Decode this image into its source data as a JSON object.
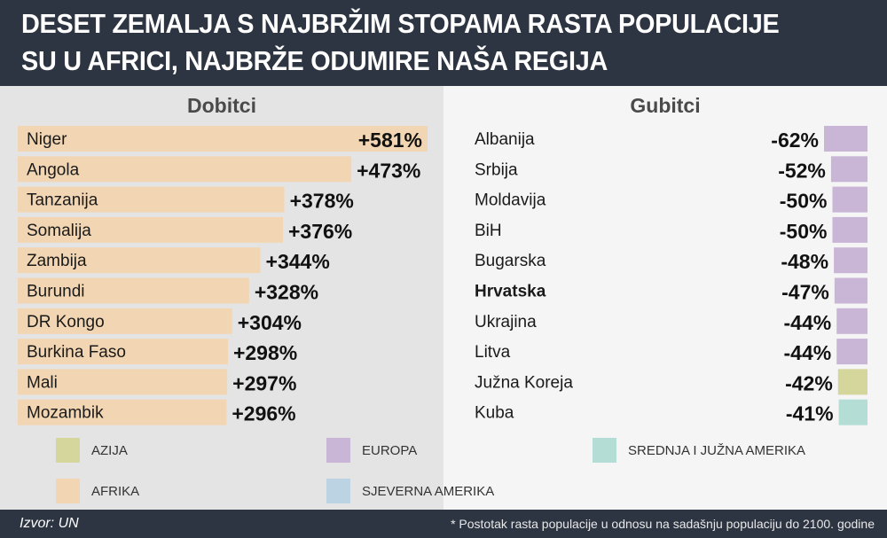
{
  "title": "DESET ZEMALJA S NAJBRŽIM STOPAMA RASTA POPULACIJE SU U AFRICI, NAJBRŽE ODUMIRE NAŠA REGIJA",
  "footer": {
    "source": "Izvor: UN",
    "note": "* Postotak rasta populacije u odnosu na sadašnju populaciju do 2100. godine"
  },
  "colors": {
    "AZIJA": "#d4d69b",
    "EUROPA": "#c9b6d6",
    "AFRIKA": "#f2d6b3",
    "SJEVERNA AMERIKA": "#bcd3e4",
    "SREDNJA I JUŽNA AMERIKA": "#b3ddd5"
  },
  "legend": [
    {
      "label": "AZIJA"
    },
    {
      "label": "EUROPA"
    },
    {
      "label": "SREDNJA I JUŽNA AMERIKA"
    },
    {
      "label": "AFRIKA"
    },
    {
      "label": "SJEVERNA AMERIKA"
    }
  ],
  "chart_data": [
    {
      "type": "bar",
      "title": "Dobitci",
      "categories": [
        "Niger",
        "Angola",
        "Tanzanija",
        "Somalija",
        "Zambija",
        "Burundi",
        "DR Kongo",
        "Burkina Faso",
        "Mali",
        "Mozambik"
      ],
      "values": [
        581,
        473,
        378,
        376,
        344,
        328,
        304,
        298,
        297,
        296
      ],
      "labels": [
        "+581%",
        "+473%",
        "+378%",
        "+376%",
        "+344%",
        "+328%",
        "+304%",
        "+298%",
        "+297%",
        "+296%"
      ],
      "regions": [
        "AFRIKA",
        "AFRIKA",
        "AFRIKA",
        "AFRIKA",
        "AFRIKA",
        "AFRIKA",
        "AFRIKA",
        "AFRIKA",
        "AFRIKA",
        "AFRIKA"
      ],
      "orientation": "horizontal"
    },
    {
      "type": "bar",
      "title": "Gubitci",
      "categories": [
        "Albanija",
        "Srbija",
        "Moldavija",
        "BiH",
        "Bugarska",
        "Hrvatska",
        "Ukrajina",
        "Litva",
        "Južna Koreja",
        "Kuba"
      ],
      "values": [
        -62,
        -52,
        -50,
        -50,
        -48,
        -47,
        -44,
        -44,
        -42,
        -41
      ],
      "labels": [
        "-62%",
        "-52%",
        "-50%",
        "-50%",
        "-48%",
        "-47%",
        "-44%",
        "-44%",
        "-42%",
        "-41%"
      ],
      "regions": [
        "EUROPA",
        "EUROPA",
        "EUROPA",
        "EUROPA",
        "EUROPA",
        "EUROPA",
        "EUROPA",
        "EUROPA",
        "AZIJA",
        "SREDNJA I JUŽNA AMERIKA"
      ],
      "highlight": "Hrvatska",
      "orientation": "horizontal"
    }
  ]
}
